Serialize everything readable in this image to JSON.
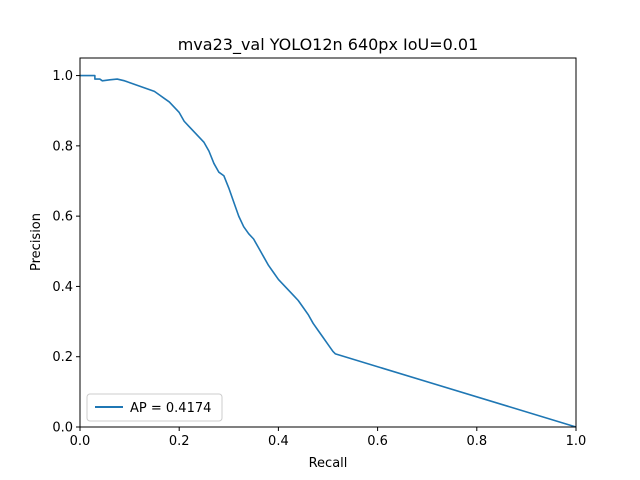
{
  "chart_data": {
    "type": "line",
    "title": "mva23_val YOLO12n 640px IoU=0.01",
    "xlabel": "Recall",
    "ylabel": "Precision",
    "xlim": [
      0.0,
      1.0
    ],
    "ylim": [
      0.0,
      1.05
    ],
    "xticks": [
      "0.0",
      "0.2",
      "0.4",
      "0.6",
      "0.8",
      "1.0"
    ],
    "yticks": [
      "0.0",
      "0.2",
      "0.4",
      "0.6",
      "0.8",
      "1.0"
    ],
    "grid": false,
    "legend_position": "lower-left",
    "series": [
      {
        "name": "AP = 0.4174",
        "color": "#1f77b4",
        "x": [
          0.0,
          0.03,
          0.03,
          0.04,
          0.045,
          0.06,
          0.075,
          0.09,
          0.1,
          0.11,
          0.12,
          0.13,
          0.14,
          0.15,
          0.16,
          0.17,
          0.18,
          0.19,
          0.2,
          0.21,
          0.22,
          0.23,
          0.24,
          0.25,
          0.26,
          0.27,
          0.28,
          0.29,
          0.3,
          0.31,
          0.32,
          0.33,
          0.34,
          0.35,
          0.36,
          0.37,
          0.38,
          0.39,
          0.4,
          0.41,
          0.42,
          0.43,
          0.44,
          0.45,
          0.46,
          0.47,
          0.48,
          0.49,
          0.5,
          0.51,
          0.515,
          1.0
        ],
        "y": [
          1.0,
          1.0,
          0.99,
          0.99,
          0.985,
          0.988,
          0.99,
          0.985,
          0.98,
          0.975,
          0.97,
          0.965,
          0.96,
          0.955,
          0.945,
          0.935,
          0.925,
          0.91,
          0.895,
          0.87,
          0.855,
          0.84,
          0.825,
          0.81,
          0.785,
          0.75,
          0.725,
          0.715,
          0.68,
          0.64,
          0.6,
          0.57,
          0.55,
          0.535,
          0.51,
          0.485,
          0.46,
          0.44,
          0.42,
          0.405,
          0.39,
          0.375,
          0.36,
          0.34,
          0.32,
          0.295,
          0.275,
          0.255,
          0.235,
          0.215,
          0.208,
          0.0
        ]
      }
    ]
  }
}
